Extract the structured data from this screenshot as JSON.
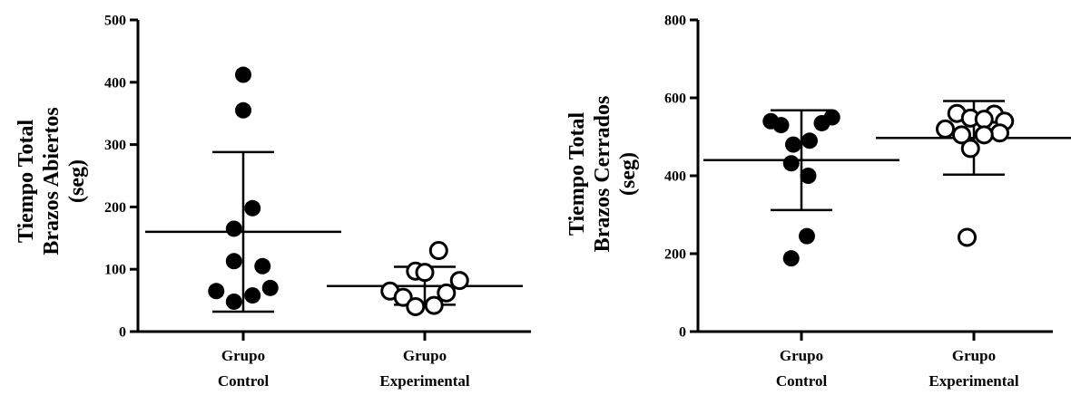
{
  "chart_data": [
    {
      "type": "scatter",
      "ylabel_lines": [
        "Tiempo Total",
        "Brazos Abiertos",
        "(seg)"
      ],
      "ylim": [
        0,
        500
      ],
      "yticks": [
        0,
        100,
        200,
        300,
        400,
        500
      ],
      "categories": [
        {
          "line1": "Grupo",
          "line2": "Control"
        },
        {
          "line1": "Grupo",
          "line2": "Experimental"
        }
      ],
      "series": [
        {
          "marker": "filled",
          "mean": 160,
          "sd_low": 32,
          "sd_high": 288,
          "points": [
            {
              "dx": 0.0,
              "y": 412
            },
            {
              "dx": 0.0,
              "y": 355
            },
            {
              "dx": 0.12,
              "y": 198
            },
            {
              "dx": -0.12,
              "y": 165
            },
            {
              "dx": -0.12,
              "y": 113
            },
            {
              "dx": 0.25,
              "y": 105
            },
            {
              "dx": 0.35,
              "y": 70
            },
            {
              "dx": -0.35,
              "y": 65
            },
            {
              "dx": 0.12,
              "y": 58
            },
            {
              "dx": -0.12,
              "y": 48
            }
          ]
        },
        {
          "marker": "open",
          "mean": 73,
          "sd_low": 43,
          "sd_high": 104,
          "points": [
            {
              "dx": 0.18,
              "y": 130
            },
            {
              "dx": -0.12,
              "y": 97
            },
            {
              "dx": 0.0,
              "y": 95
            },
            {
              "dx": 0.45,
              "y": 82
            },
            {
              "dx": -0.45,
              "y": 65
            },
            {
              "dx": 0.28,
              "y": 62
            },
            {
              "dx": -0.28,
              "y": 55
            },
            {
              "dx": 0.12,
              "y": 42
            },
            {
              "dx": -0.12,
              "y": 40
            }
          ]
        }
      ]
    },
    {
      "type": "scatter",
      "ylabel_lines": [
        "Tiempo Total",
        "Brazos Cerrados",
        "(seg)"
      ],
      "ylim": [
        0,
        800
      ],
      "yticks": [
        0,
        200,
        400,
        600,
        800
      ],
      "categories": [
        {
          "line1": "Grupo",
          "line2": "Control"
        },
        {
          "line1": "Grupo",
          "line2": "Experimental"
        }
      ],
      "series": [
        {
          "marker": "filled",
          "mean": 440,
          "sd_low": 312,
          "sd_high": 568,
          "points": [
            {
              "dx": -0.45,
              "y": 540
            },
            {
              "dx": -0.3,
              "y": 530
            },
            {
              "dx": 0.45,
              "y": 550
            },
            {
              "dx": 0.3,
              "y": 535
            },
            {
              "dx": 0.12,
              "y": 490
            },
            {
              "dx": -0.12,
              "y": 480
            },
            {
              "dx": -0.15,
              "y": 432
            },
            {
              "dx": 0.1,
              "y": 400
            },
            {
              "dx": 0.08,
              "y": 245
            },
            {
              "dx": -0.15,
              "y": 188
            }
          ]
        },
        {
          "marker": "open",
          "mean": 497,
          "sd_low": 403,
          "sd_high": 592,
          "points": [
            {
              "dx": -0.25,
              "y": 560
            },
            {
              "dx": 0.3,
              "y": 558
            },
            {
              "dx": -0.05,
              "y": 548
            },
            {
              "dx": 0.15,
              "y": 545
            },
            {
              "dx": 0.45,
              "y": 540
            },
            {
              "dx": -0.42,
              "y": 520
            },
            {
              "dx": 0.38,
              "y": 510
            },
            {
              "dx": -0.18,
              "y": 505
            },
            {
              "dx": 0.15,
              "y": 505
            },
            {
              "dx": -0.05,
              "y": 470
            },
            {
              "dx": -0.1,
              "y": 242
            }
          ]
        }
      ]
    }
  ]
}
